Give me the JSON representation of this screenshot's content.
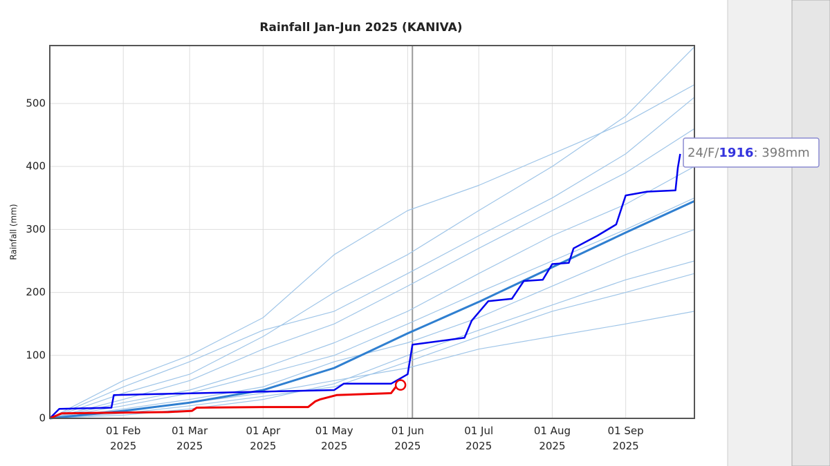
{
  "chart_data": {
    "type": "line",
    "title": "Rainfall Jan-Jun 2025 (KANIVA)",
    "y_label": "Rainfall (mm)",
    "xlim": [
      "2025-01-01",
      "2025-09-30"
    ],
    "ylim": [
      0,
      592
    ],
    "yticks": [
      0,
      100,
      200,
      300,
      400,
      500
    ],
    "xticks": [
      {
        "value": "2025-02-01",
        "label": "01 Feb 2025"
      },
      {
        "value": "2025-03-01",
        "label": "01 Mar 2025"
      },
      {
        "value": "2025-04-01",
        "label": "01 Apr 2025"
      },
      {
        "value": "2025-05-01",
        "label": "01 May 2025"
      },
      {
        "value": "2025-06-01",
        "label": "01 Jun 2025"
      },
      {
        "value": "2025-07-01",
        "label": "01 Jul 2025"
      },
      {
        "value": "2025-08-01",
        "label": "01 Aug 2025"
      },
      {
        "value": "2025-09-01",
        "label": "01 Sep 2025"
      }
    ],
    "grid": true,
    "today": "2025-06-03",
    "background_color": "#9fc5e8",
    "background_series": [
      {
        "x": [
          "2025-01-01",
          "2025-02-01",
          "2025-03-01",
          "2025-04-01",
          "2025-05-01",
          "2025-06-01",
          "2025-07-01",
          "2025-08-01",
          "2025-09-01",
          "2025-09-30"
        ],
        "values": [
          0,
          40,
          70,
          130,
          200,
          260,
          330,
          400,
          480,
          590
        ]
      },
      {
        "x": [
          "2025-01-01",
          "2025-02-01",
          "2025-03-01",
          "2025-04-01",
          "2025-05-01",
          "2025-06-01",
          "2025-07-01",
          "2025-08-01",
          "2025-09-01",
          "2025-09-30"
        ],
        "values": [
          0,
          20,
          40,
          70,
          100,
          150,
          200,
          250,
          300,
          350
        ]
      },
      {
        "x": [
          "2025-01-01",
          "2025-02-01",
          "2025-03-01",
          "2025-04-01",
          "2025-05-01",
          "2025-06-01",
          "2025-07-01",
          "2025-08-01",
          "2025-09-01",
          "2025-09-30"
        ],
        "values": [
          0,
          10,
          25,
          40,
          60,
          80,
          110,
          130,
          150,
          170
        ]
      },
      {
        "x": [
          "2025-01-01",
          "2025-02-01",
          "2025-03-01",
          "2025-04-01",
          "2025-05-01",
          "2025-06-01",
          "2025-07-01",
          "2025-08-01",
          "2025-09-01",
          "2025-09-30"
        ],
        "values": [
          0,
          30,
          60,
          110,
          150,
          210,
          270,
          330,
          390,
          460
        ]
      },
      {
        "x": [
          "2025-01-01",
          "2025-02-01",
          "2025-03-01",
          "2025-04-01",
          "2025-05-01",
          "2025-06-01",
          "2025-07-01",
          "2025-08-01",
          "2025-09-01",
          "2025-09-30"
        ],
        "values": [
          0,
          15,
          30,
          50,
          90,
          120,
          160,
          210,
          260,
          300
        ]
      },
      {
        "x": [
          "2025-01-01",
          "2025-02-01",
          "2025-03-01",
          "2025-04-01",
          "2025-05-01",
          "2025-06-01",
          "2025-07-01",
          "2025-08-01",
          "2025-09-01",
          "2025-09-30"
        ],
        "values": [
          0,
          50,
          90,
          140,
          170,
          230,
          290,
          350,
          420,
          510
        ]
      },
      {
        "x": [
          "2025-01-01",
          "2025-02-01",
          "2025-03-01",
          "2025-04-01",
          "2025-05-01",
          "2025-06-01",
          "2025-07-01",
          "2025-08-01",
          "2025-09-01",
          "2025-09-30"
        ],
        "values": [
          0,
          5,
          15,
          30,
          55,
          100,
          140,
          180,
          220,
          250
        ]
      },
      {
        "x": [
          "2025-01-01",
          "2025-02-01",
          "2025-03-01",
          "2025-04-01",
          "2025-05-01",
          "2025-06-01",
          "2025-07-01",
          "2025-08-01",
          "2025-09-01",
          "2025-09-30"
        ],
        "values": [
          0,
          25,
          45,
          80,
          120,
          170,
          230,
          290,
          340,
          400
        ]
      },
      {
        "x": [
          "2025-01-01",
          "2025-02-01",
          "2025-03-01",
          "2025-04-01",
          "2025-05-01",
          "2025-06-01",
          "2025-07-01",
          "2025-08-01",
          "2025-09-01",
          "2025-09-30"
        ],
        "values": [
          0,
          60,
          100,
          160,
          260,
          330,
          370,
          420,
          470,
          530
        ]
      },
      {
        "x": [
          "2025-01-01",
          "2025-02-01",
          "2025-03-01",
          "2025-04-01",
          "2025-05-01",
          "2025-06-01",
          "2025-07-01",
          "2025-08-01",
          "2025-09-01",
          "2025-09-30"
        ],
        "values": [
          0,
          8,
          20,
          35,
          50,
          90,
          130,
          170,
          200,
          230
        ]
      }
    ],
    "series": [
      {
        "color": "#2f7fd0",
        "width": 3,
        "x": [
          "2025-01-01",
          "2025-02-01",
          "2025-03-01",
          "2025-04-01",
          "2025-05-01",
          "2025-06-01",
          "2025-07-01",
          "2025-08-01",
          "2025-09-01",
          "2025-09-30"
        ],
        "values": [
          0,
          12,
          25,
          45,
          80,
          135,
          185,
          240,
          295,
          345
        ]
      },
      {
        "color": "#0000ee",
        "width": 2.5,
        "x": [
          "2025-01-01",
          "2025-01-05",
          "2025-01-27",
          "2025-01-28",
          "2025-03-15",
          "2025-05-01",
          "2025-05-05",
          "2025-05-25",
          "2025-06-01",
          "2025-06-03",
          "2025-06-25",
          "2025-06-28",
          "2025-07-05",
          "2025-07-15",
          "2025-07-20",
          "2025-07-28",
          "2025-08-01",
          "2025-08-08",
          "2025-08-10",
          "2025-08-20",
          "2025-08-28",
          "2025-09-01",
          "2025-09-10",
          "2025-09-22",
          "2025-09-23",
          "2025-09-24"
        ],
        "values": [
          0,
          15,
          17,
          37,
          41,
          45,
          55,
          55,
          70,
          117,
          128,
          155,
          186,
          190,
          218,
          220,
          245,
          247,
          270,
          290,
          308,
          354,
          360,
          362,
          398,
          420
        ]
      },
      {
        "color": "#ee0000",
        "width": 3,
        "end_marker": true,
        "x": [
          "2025-01-01",
          "2025-01-06",
          "2025-02-20",
          "2025-03-02",
          "2025-03-04",
          "2025-04-01",
          "2025-04-20",
          "2025-04-23",
          "2025-04-25",
          "2025-05-02",
          "2025-05-25",
          "2025-05-27",
          "2025-05-29"
        ],
        "values": [
          0,
          8,
          10,
          12,
          17,
          18,
          18,
          27,
          30,
          37,
          40,
          50,
          53
        ]
      }
    ],
    "tooltip": {
      "prefix": "24/F/",
      "year": "1916",
      "suffix": ": 398mm"
    }
  }
}
